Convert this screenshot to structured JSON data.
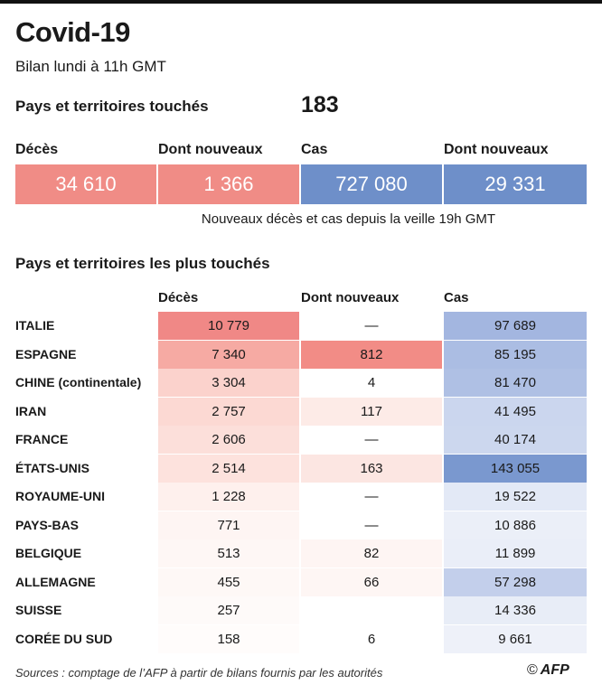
{
  "header": {
    "title": "Covid-19",
    "subtitle": "Bilan lundi à 11h GMT",
    "touched_label": "Pays et territoires touchés",
    "touched_value": "183"
  },
  "kpis": [
    {
      "label": "Décès",
      "value": "34 610",
      "color": "#f08c86"
    },
    {
      "label": "Dont nouveaux",
      "value": "1 366",
      "color": "#f08c86"
    },
    {
      "label": "Cas",
      "value": "727 080",
      "color": "#6e8fc9"
    },
    {
      "label": "Dont nouveaux",
      "value": "29 331",
      "color": "#6e8fc9"
    }
  ],
  "kpi_note": "Nouveaux décès et cas depuis la veille 19h GMT",
  "table": {
    "title": "Pays et territoires les plus touchés",
    "columns": [
      "Décès",
      "Dont nouveaux",
      "Cas"
    ],
    "rows": [
      {
        "country": "ITALIE",
        "deaths": "10 779",
        "new": "—",
        "cases": "97 689"
      },
      {
        "country": "ESPAGNE",
        "deaths": "7 340",
        "new": "812",
        "cases": "85 195"
      },
      {
        "country": "CHINE (continentale)",
        "deaths": "3 304",
        "new": "4",
        "cases": "81 470"
      },
      {
        "country": "IRAN",
        "deaths": "2 757",
        "new": "117",
        "cases": "41 495"
      },
      {
        "country": "FRANCE",
        "deaths": "2 606",
        "new": "—",
        "cases": "40 174"
      },
      {
        "country": "ÉTATS-UNIS",
        "deaths": "2 514",
        "new": "163",
        "cases": "143 055"
      },
      {
        "country": "ROYAUME-UNI",
        "deaths": "1 228",
        "new": "—",
        "cases": "19 522"
      },
      {
        "country": "PAYS-BAS",
        "deaths": "771",
        "new": "—",
        "cases": "10 886"
      },
      {
        "country": "BELGIQUE",
        "deaths": "513",
        "new": "82",
        "cases": "11 899"
      },
      {
        "country": "ALLEMAGNE",
        "deaths": "455",
        "new": "66",
        "cases": "57 298"
      },
      {
        "country": "SUISSE",
        "deaths": "257",
        "new": "",
        "cases": "14 336"
      },
      {
        "country": "CORÉE DU SUD",
        "deaths": "158",
        "new": "6",
        "cases": "9 661"
      }
    ],
    "colors": {
      "deaths": [
        "#f08886",
        "#f6aaa3",
        "#fbd2cc",
        "#fcd9d3",
        "#fcdfda",
        "#fde2dd",
        "#fef0ed",
        "#fef5f3",
        "#fef7f5",
        "#fef8f6",
        "#fefaf9",
        "#fffcfb"
      ],
      "new": [
        "#ffffff",
        "#f28c86",
        "#ffffff",
        "#fdebe7",
        "#ffffff",
        "#fce6e2",
        "#ffffff",
        "#ffffff",
        "#fef5f3",
        "#fef6f4",
        "#ffffff",
        "#ffffff"
      ],
      "cases": [
        "#a3b6e0",
        "#abbde3",
        "#afc0e4",
        "#cbd6ee",
        "#ccd7ee",
        "#7a98cf",
        "#e3e9f6",
        "#ebeff8",
        "#eaeef8",
        "#c3cfeb",
        "#e8edf7",
        "#eef1f9"
      ]
    }
  },
  "footer": {
    "sources": "Sources : comptage de l’AFP à partir de bilans fournis par les autorités",
    "logo_copy": "©",
    "logo_text": "AFP"
  }
}
